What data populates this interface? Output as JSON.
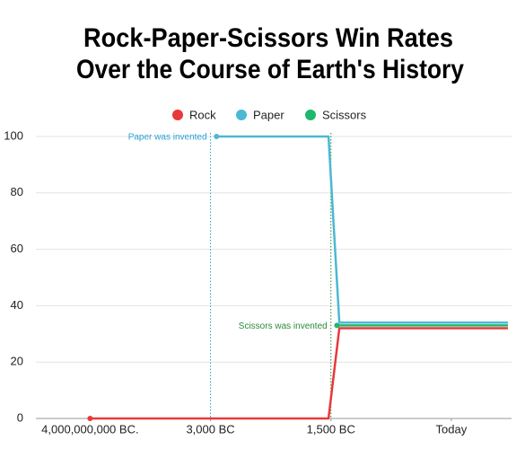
{
  "chart_data": {
    "type": "line",
    "title": [
      "Rock-Paper-Scissors Win Rates",
      "Over the Course of Earth's History"
    ],
    "xlim": [
      -0.45,
      3.5
    ],
    "xticks": [
      {
        "value": 0,
        "label": "4,000,000,000 BC."
      },
      {
        "value": 1,
        "label": "3,000 BC"
      },
      {
        "value": 2,
        "label": "1,500 BC"
      },
      {
        "value": 3,
        "label": "Today"
      }
    ],
    "ylim": [
      0,
      100
    ],
    "yticks": [
      0,
      20,
      40,
      60,
      80,
      100
    ],
    "grid": true,
    "legend": "top",
    "series": [
      {
        "name": "Rock",
        "color": "#e8393b",
        "x": [
          0,
          1.98,
          2.07,
          3.47
        ],
        "values": [
          0,
          0,
          32,
          32
        ]
      },
      {
        "name": "Paper",
        "color": "#4bb8d4",
        "x": [
          1.05,
          1.98,
          2.07,
          3.47
        ],
        "values": [
          100,
          100,
          34,
          34
        ]
      },
      {
        "name": "Scissors",
        "color": "#1db86b",
        "x": [
          2.05,
          3.47
        ],
        "values": [
          33,
          33
        ]
      }
    ],
    "annotations": [
      {
        "text": "Paper was invented",
        "x": 1,
        "y": 100,
        "color": "#2a9fd6"
      },
      {
        "text": "Scissors was invented",
        "x": 2,
        "y": 33,
        "color": "#2a8a3a"
      }
    ]
  }
}
